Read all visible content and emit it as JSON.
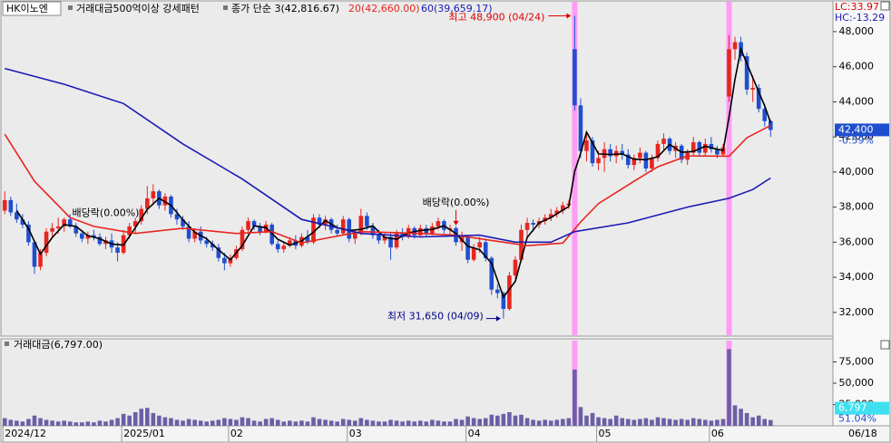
{
  "chart_data": {
    "type": "candlestick",
    "title": "HK이노엔",
    "subtitle": "거래대금500억이상 강세패턴",
    "lc": "LC:33.97",
    "hc": "HC:-13.29",
    "last_label": "42,400",
    "change_label": "-0.59%",
    "date_cursor": "06/18",
    "up_color": "#e8251f",
    "down_color": "#1f4fcf",
    "xlim": [
      -0.5,
      139.5
    ],
    "xticks": [
      {
        "value": 0,
        "label": "2024/12"
      },
      {
        "value": 20,
        "label": "2025/01"
      },
      {
        "value": 38,
        "label": "02"
      },
      {
        "value": 58,
        "label": "03"
      },
      {
        "value": 78,
        "label": "04"
      },
      {
        "value": 100,
        "label": "05"
      },
      {
        "value": 119,
        "label": "06"
      }
    ],
    "ylim": [
      30700,
      49700
    ],
    "yticks": [
      {
        "value": 32000,
        "label": "32,000"
      },
      {
        "value": 34000,
        "label": "34,000"
      },
      {
        "value": 36000,
        "label": "36,000"
      },
      {
        "value": 38000,
        "label": "38,000"
      },
      {
        "value": 40000,
        "label": "40,000"
      },
      {
        "value": 42000,
        "label": "42,000"
      },
      {
        "value": 44000,
        "label": "44,000"
      },
      {
        "value": 46000,
        "label": "46,000"
      },
      {
        "value": 48000,
        "label": "48,000"
      }
    ],
    "signals": {
      "indices": [
        96,
        122
      ],
      "color": "#ff9cf5"
    },
    "open": [
      37800,
      38400,
      37700,
      37300,
      37000,
      36000,
      34600,
      35400,
      36600,
      36800,
      36900,
      37300,
      36900,
      36500,
      36200,
      36400,
      36300,
      35900,
      36100,
      35700,
      35400,
      36400,
      36900,
      37200,
      37900,
      38500,
      38900,
      38100,
      38600,
      37600,
      37300,
      36900,
      36200,
      36600,
      36100,
      35900,
      35700,
      35100,
      34800,
      35100,
      35600,
      36700,
      37200,
      36900,
      36600,
      37000,
      35900,
      35600,
      35800,
      36100,
      35800,
      36300,
      36000,
      37400,
      37000,
      37300,
      36700,
      36500,
      37300,
      36200,
      36500,
      37500,
      36900,
      36400,
      36100,
      36300,
      35700,
      36500,
      36300,
      36800,
      36400,
      36800,
      36500,
      36900,
      37200,
      36700,
      36800,
      36000,
      36300,
      35000,
      35700,
      36000,
      35100,
      33300,
      33100,
      32200,
      34100,
      35000,
      36700,
      37100,
      37000,
      37200,
      37400,
      37600,
      37800,
      38100,
      47000,
      43800,
      41200,
      41800,
      40500,
      40800,
      41300,
      40900,
      41200,
      41000,
      40400,
      40800,
      41100,
      40200,
      40800,
      41600,
      41900,
      41200,
      41500,
      40700,
      41100,
      41700,
      41100,
      41600,
      41300,
      41000,
      44300,
      47000,
      47400,
      46600,
      44700,
      44800,
      43600,
      42900
    ],
    "high": [
      38900,
      38600,
      38200,
      37600,
      37200,
      36100,
      35600,
      36800,
      37100,
      37400,
      37400,
      37600,
      37100,
      36700,
      36600,
      36700,
      36500,
      36300,
      36500,
      36000,
      36700,
      37100,
      37400,
      38100,
      39200,
      39300,
      39000,
      38800,
      38700,
      37900,
      37500,
      37200,
      36800,
      36900,
      36300,
      36100,
      35900,
      35400,
      35300,
      35800,
      36900,
      37400,
      37300,
      37100,
      37200,
      37100,
      36100,
      36000,
      36300,
      36400,
      36500,
      36700,
      37600,
      37600,
      37500,
      37400,
      37000,
      37500,
      37400,
      36700,
      37900,
      37700,
      37100,
      36700,
      36500,
      36500,
      36700,
      36800,
      37000,
      36900,
      37000,
      37000,
      37100,
      37400,
      37300,
      37000,
      36900,
      36600,
      36400,
      35900,
      36300,
      36200,
      35200,
      33600,
      33200,
      34300,
      35200,
      37000,
      37400,
      37300,
      37400,
      37600,
      37900,
      38000,
      38300,
      38400,
      48900,
      44200,
      42200,
      42000,
      41200,
      41700,
      41600,
      41500,
      41600,
      41300,
      41000,
      41400,
      41200,
      41000,
      41800,
      42200,
      42000,
      41700,
      41600,
      41300,
      42000,
      41800,
      41900,
      42000,
      41500,
      41600,
      47800,
      47700,
      47700,
      46800,
      45500,
      45000,
      43900,
      43000
    ],
    "low": [
      37600,
      37500,
      37100,
      36800,
      35800,
      34200,
      34400,
      35200,
      36300,
      36500,
      36600,
      36800,
      36300,
      36000,
      35900,
      36100,
      35800,
      35600,
      35400,
      34900,
      35300,
      36200,
      36500,
      37000,
      37600,
      38100,
      37900,
      37800,
      37400,
      37000,
      36700,
      36000,
      36000,
      35900,
      35700,
      35500,
      34900,
      34400,
      34600,
      35000,
      35500,
      36500,
      36700,
      36400,
      36500,
      35800,
      35400,
      35400,
      35700,
      35600,
      35700,
      35900,
      35900,
      36800,
      36700,
      36500,
      36300,
      36400,
      36000,
      35900,
      36400,
      36700,
      36200,
      35900,
      35900,
      35000,
      35600,
      36100,
      36200,
      36200,
      36300,
      36300,
      36400,
      36700,
      36500,
      36400,
      35800,
      35500,
      34800,
      34900,
      35400,
      34900,
      33000,
      32800,
      31650,
      32100,
      33900,
      34900,
      36200,
      36600,
      36800,
      37000,
      37200,
      37400,
      37600,
      37900,
      43500,
      40800,
      40600,
      40300,
      40100,
      40000,
      40600,
      40500,
      40700,
      40200,
      40100,
      40500,
      40000,
      40000,
      40600,
      41200,
      41000,
      40800,
      40500,
      40400,
      40900,
      40900,
      40900,
      41100,
      40800,
      40900,
      44000,
      46400,
      46300,
      44400,
      44000,
      43400,
      42600,
      42000
    ],
    "close": [
      38400,
      37700,
      37300,
      37000,
      36000,
      34600,
      35400,
      36600,
      36800,
      36900,
      37300,
      36900,
      36500,
      36200,
      36400,
      36300,
      35900,
      36100,
      35700,
      35400,
      36400,
      36900,
      37200,
      37900,
      38500,
      38900,
      38100,
      38600,
      37600,
      37300,
      36900,
      36200,
      36600,
      36100,
      35900,
      35700,
      35100,
      34800,
      35100,
      35600,
      36700,
      37200,
      36900,
      36600,
      37000,
      35900,
      35600,
      35800,
      36100,
      35800,
      36300,
      36000,
      37400,
      37000,
      37300,
      36700,
      36500,
      37300,
      36200,
      36500,
      37500,
      36900,
      36400,
      36100,
      36300,
      35700,
      36500,
      36300,
      36800,
      36400,
      36800,
      36500,
      36900,
      37200,
      36700,
      36800,
      36000,
      36300,
      35000,
      35700,
      36000,
      35100,
      33300,
      33100,
      32200,
      34100,
      35000,
      36700,
      37100,
      37000,
      37200,
      37400,
      37600,
      37800,
      38100,
      38200,
      43800,
      41200,
      41800,
      40500,
      40800,
      41300,
      40900,
      41200,
      41000,
      40400,
      40800,
      41100,
      40200,
      40800,
      41600,
      41900,
      41200,
      41500,
      40700,
      41100,
      41700,
      41100,
      41600,
      41300,
      41000,
      41400,
      47000,
      47400,
      46600,
      44700,
      44800,
      43600,
      42900,
      42400
    ],
    "series": [
      {
        "name": "종가 단순 3(42,816.67)",
        "color": "#000000",
        "x": [
          2,
          4,
          6,
          8,
          10,
          12,
          14,
          16,
          18,
          20,
          22,
          24,
          26,
          28,
          30,
          32,
          34,
          36,
          38,
          40,
          42,
          44,
          46,
          48,
          50,
          52,
          54,
          56,
          58,
          60,
          62,
          64,
          66,
          68,
          70,
          72,
          74,
          76,
          78,
          80,
          82,
          84,
          86,
          88,
          90,
          92,
          94,
          95,
          96,
          97,
          98,
          100,
          102,
          104,
          106,
          108,
          110,
          112,
          114,
          116,
          118,
          120,
          121,
          122,
          123,
          124,
          126,
          128,
          129
        ],
        "values": [
          37800,
          36770,
          35330,
          36270,
          37000,
          36900,
          36370,
          36200,
          35900,
          35830,
          36830,
          37870,
          38500,
          38100,
          37270,
          36570,
          36200,
          35570,
          35000,
          35800,
          36930,
          36830,
          36170,
          35830,
          36070,
          36570,
          37230,
          36830,
          36670,
          36730,
          36930,
          36270,
          36170,
          36530,
          36670,
          36730,
          36930,
          36500,
          35770,
          35570,
          34800,
          32870,
          33770,
          36270,
          37100,
          37400,
          37830,
          38030,
          40030,
          41070,
          42270,
          41030,
          41000,
          41030,
          40730,
          40700,
          40870,
          41570,
          41130,
          41170,
          41470,
          41300,
          41230,
          43130,
          45270,
          47000,
          45370,
          43770,
          42820
        ]
      },
      {
        "name": "20(42,660.00)",
        "color": "#e8251f",
        "x": [
          0,
          5,
          11,
          15,
          22,
          30,
          39,
          45,
          50,
          60,
          70,
          76,
          82,
          88,
          94,
          97,
          100,
          106,
          110,
          115,
          122,
          125,
          129
        ],
        "values": [
          42150,
          39470,
          37400,
          36900,
          36500,
          36800,
          36500,
          36600,
          35960,
          36600,
          36500,
          36400,
          36100,
          35800,
          35950,
          37150,
          38200,
          39470,
          40300,
          40920,
          40900,
          41950,
          42660
        ]
      },
      {
        "name": "60(39,659.17)",
        "color": "#1a1ab4",
        "x": [
          0,
          10,
          20,
          30,
          40,
          50,
          55,
          60,
          70,
          80,
          86,
          92,
          96,
          105,
          115,
          122,
          126,
          129
        ],
        "values": [
          45900,
          45000,
          43900,
          41600,
          39600,
          37300,
          36900,
          36500,
          36300,
          36400,
          36000,
          36000,
          36600,
          37100,
          38000,
          38500,
          39000,
          39660
        ]
      }
    ],
    "annotations": [
      {
        "text": "최고 48,900 (04/24)",
        "at": 96,
        "kind": "high",
        "color": "#e00000"
      },
      {
        "text": "최저 31,650 (04/09)",
        "at": 84,
        "kind": "low",
        "color": "#00008b"
      },
      {
        "text": "배당락(0.00%)",
        "at": 17,
        "kind": "exdiv",
        "color": "#000000"
      },
      {
        "text": "배당락(0.00%)",
        "at": 76,
        "kind": "exdiv",
        "color": "#000000",
        "arrow_color": "#e00000"
      }
    ],
    "volume": {
      "name": "거래대금(6,797.00)",
      "color": "#6b5fa6",
      "last_label": "6,797",
      "ratio_label": "51.04%",
      "ylim": [
        0,
        100000
      ],
      "yticks": [
        {
          "value": 25000,
          "label": "25,000"
        },
        {
          "value": 50000,
          "label": "50,000"
        },
        {
          "value": 75000,
          "label": "75,000"
        }
      ],
      "values": [
        9000,
        7000,
        6000,
        5000,
        8000,
        12000,
        9000,
        7000,
        6000,
        5000,
        6000,
        5000,
        4000,
        4000,
        5000,
        4000,
        6000,
        5000,
        7000,
        9000,
        14000,
        12000,
        16000,
        20000,
        21000,
        15000,
        12000,
        10000,
        9000,
        7000,
        6000,
        8000,
        7000,
        6000,
        5000,
        6000,
        7000,
        9000,
        8000,
        7000,
        10000,
        9000,
        6000,
        5000,
        8000,
        9000,
        7000,
        5000,
        6000,
        5000,
        6000,
        5000,
        10000,
        8000,
        7000,
        6000,
        5000,
        8000,
        7000,
        6000,
        9000,
        7000,
        6000,
        5000,
        5000,
        7000,
        6000,
        5000,
        6000,
        5000,
        6000,
        5000,
        7000,
        6000,
        5000,
        5000,
        8000,
        7000,
        11000,
        9000,
        8000,
        9000,
        13000,
        12000,
        14000,
        16000,
        12000,
        13000,
        9000,
        7000,
        6000,
        7000,
        6000,
        7000,
        8000,
        9000,
        66000,
        22000,
        12000,
        15000,
        10000,
        9000,
        8000,
        12000,
        9000,
        8000,
        7000,
        8000,
        9000,
        7000,
        10000,
        9000,
        8000,
        7000,
        8000,
        7000,
        9000,
        8000,
        7000,
        6000,
        7000,
        8000,
        90000,
        24000,
        20000,
        15000,
        10000,
        12000,
        8000,
        6797
      ]
    }
  }
}
